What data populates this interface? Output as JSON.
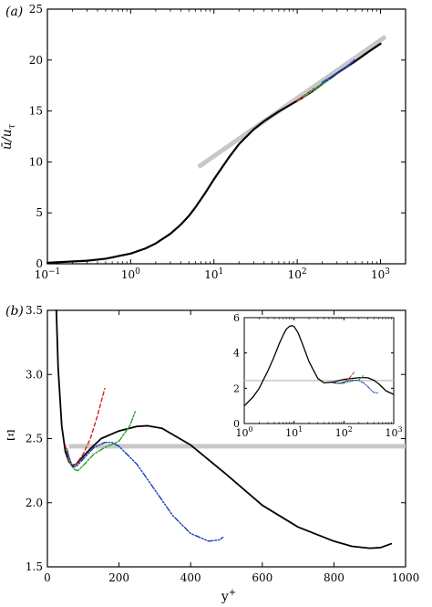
{
  "chart_data": [
    {
      "type": "line",
      "panel_label": "(a)",
      "xlabel": "",
      "ylabel": "ū/u",
      "ylabel_subscript": "τ",
      "xscale": "log",
      "xlim": [
        0.1,
        2000
      ],
      "ylim": [
        0,
        25
      ],
      "x_ticks": [
        0.1,
        1,
        10,
        100,
        1000
      ],
      "x_tick_labels": [
        {
          "base": "10",
          "exp": "−1"
        },
        {
          "base": "10",
          "exp": "0"
        },
        {
          "base": "10",
          "exp": "1"
        },
        {
          "base": "10",
          "exp": "2"
        },
        {
          "base": "10",
          "exp": "3"
        }
      ],
      "y_ticks": [
        0,
        5,
        10,
        15,
        20,
        25
      ],
      "y_tick_labels": [
        "0",
        "5",
        "10",
        "15",
        "20",
        "25"
      ],
      "grid": false,
      "series": [
        {
          "style": "reference",
          "color": "#c8c8c8",
          "dash": "",
          "x": [
            6.5,
            1150
          ],
          "y": [
            9.5,
            22.3
          ]
        },
        {
          "style": "solid",
          "color": "#000000",
          "dash": "",
          "x": [
            0.1,
            0.3,
            0.5,
            1,
            1.5,
            2,
            3,
            4,
            5,
            6,
            8,
            10,
            15,
            20,
            30,
            40,
            60,
            100,
            150,
            200,
            300,
            500,
            700,
            1000
          ],
          "y": [
            0.1,
            0.3,
            0.5,
            1,
            1.5,
            2,
            2.95,
            3.85,
            4.7,
            5.55,
            7.05,
            8.3,
            10.4,
            11.75,
            13.2,
            14.0,
            14.95,
            16.0,
            16.9,
            17.65,
            18.7,
            19.9,
            20.75,
            21.6
          ]
        },
        {
          "style": "dashed",
          "color": "#d62728",
          "dash": "4,3",
          "x": [
            100,
            160
          ],
          "y": [
            16.0,
            17.2
          ]
        },
        {
          "style": "dash-dot",
          "color": "#2ca02c",
          "dash": "6,2,2,2",
          "x": [
            120,
            250
          ],
          "y": [
            16.4,
            18.2
          ]
        },
        {
          "style": "dash-dot-dot",
          "color": "#1f3fbf",
          "dash": "6,2,1.5,2,1.5,2",
          "x": [
            200,
            300,
            400,
            490
          ],
          "y": [
            17.8,
            18.7,
            19.4,
            20.0
          ]
        }
      ]
    },
    {
      "type": "line",
      "panel_label": "(b)",
      "xlabel": "y",
      "xlabel_superscript": "+",
      "ylabel": "Ξ",
      "xlim": [
        0,
        1000
      ],
      "ylim": [
        1.5,
        3.5
      ],
      "x_ticks": [
        0,
        200,
        400,
        600,
        800,
        1000
      ],
      "x_tick_labels": [
        "0",
        "200",
        "400",
        "600",
        "800",
        "1000"
      ],
      "y_ticks": [
        1.5,
        2.0,
        2.5,
        3.0,
        3.5
      ],
      "y_tick_labels": [
        "1.5",
        "2.0",
        "2.5",
        "3.0",
        "3.5"
      ],
      "grid": false,
      "reference_value": 2.44,
      "series": [
        {
          "style": "reference",
          "color": "#c8c8c8",
          "dash": "",
          "x": [
            60,
            1000
          ],
          "y": [
            2.44,
            2.44
          ]
        },
        {
          "style": "solid",
          "color": "#000000",
          "dash": "",
          "x": [
            25,
            30,
            40,
            50,
            60,
            70,
            80,
            100,
            120,
            150,
            200,
            250,
            280,
            320,
            400,
            500,
            600,
            700,
            800,
            850,
            900,
            930,
            960
          ],
          "y": [
            3.5,
            3.05,
            2.6,
            2.4,
            2.32,
            2.29,
            2.3,
            2.36,
            2.42,
            2.5,
            2.56,
            2.595,
            2.6,
            2.58,
            2.45,
            2.22,
            1.98,
            1.81,
            1.7,
            1.66,
            1.645,
            1.65,
            1.68
          ]
        },
        {
          "style": "dashed",
          "color": "#d62728",
          "dash": "4,3",
          "x": [
            50,
            60,
            70,
            80,
            100,
            120,
            140,
            160
          ],
          "y": [
            2.45,
            2.32,
            2.28,
            2.3,
            2.38,
            2.5,
            2.68,
            2.89
          ]
        },
        {
          "style": "dash-dot",
          "color": "#2ca02c",
          "dash": "6,2,2,2",
          "x": [
            55,
            65,
            75,
            85,
            100,
            130,
            160,
            200,
            230,
            245
          ],
          "y": [
            2.42,
            2.3,
            2.26,
            2.25,
            2.29,
            2.38,
            2.43,
            2.48,
            2.6,
            2.71
          ]
        },
        {
          "style": "dash-dot-dot",
          "color": "#1f3fbf",
          "dash": "6,2,1.5,2,1.5,2",
          "x": [
            55,
            70,
            80,
            100,
            130,
            160,
            180,
            200,
            250,
            300,
            350,
            400,
            450,
            480,
            490
          ],
          "y": [
            2.4,
            2.28,
            2.28,
            2.34,
            2.43,
            2.47,
            2.47,
            2.44,
            2.3,
            2.1,
            1.9,
            1.76,
            1.7,
            1.71,
            1.73
          ]
        }
      ]
    },
    {
      "type": "line",
      "panel_label": "",
      "inset_of": "(b)",
      "xscale": "log",
      "xlim": [
        1,
        1000
      ],
      "ylim": [
        0,
        6
      ],
      "x_ticks": [
        1,
        10,
        100,
        1000
      ],
      "x_tick_labels": [
        {
          "base": "10",
          "exp": "0"
        },
        {
          "base": "10",
          "exp": "1"
        },
        {
          "base": "10",
          "exp": "2"
        },
        {
          "base": "10",
          "exp": "3"
        }
      ],
      "y_ticks": [
        0,
        2,
        4,
        6
      ],
      "y_tick_labels": [
        "0",
        "2",
        "4",
        "6"
      ],
      "grid": false,
      "series": [
        {
          "style": "reference",
          "color": "#c8c8c8",
          "dash": "",
          "x": [
            1,
            1000
          ],
          "y": [
            2.44,
            2.44
          ]
        },
        {
          "style": "solid",
          "color": "#000000",
          "dash": "",
          "x": [
            1,
            1.5,
            2,
            3,
            4,
            5,
            6,
            7,
            8,
            9,
            10,
            12,
            15,
            20,
            30,
            40,
            60,
            100,
            150,
            200,
            300,
            400,
            500,
            700,
            1000
          ],
          "y": [
            1.0,
            1.5,
            2.0,
            3.0,
            3.8,
            4.5,
            5.0,
            5.35,
            5.5,
            5.55,
            5.5,
            5.15,
            4.45,
            3.5,
            2.55,
            2.3,
            2.35,
            2.5,
            2.56,
            2.6,
            2.6,
            2.45,
            2.25,
            1.85,
            1.65
          ]
        },
        {
          "style": "dashed",
          "color": "#d62728",
          "dash": "3,2",
          "x": [
            60,
            80,
            100,
            120,
            140,
            160
          ],
          "y": [
            2.3,
            2.28,
            2.35,
            2.5,
            2.7,
            2.89
          ]
        },
        {
          "style": "dash-dot",
          "color": "#2ca02c",
          "dash": "4,2,1.5,2",
          "x": [
            60,
            85,
            100,
            130,
            160,
            200,
            245
          ],
          "y": [
            2.3,
            2.25,
            2.29,
            2.38,
            2.43,
            2.48,
            2.71
          ]
        },
        {
          "style": "dash-dot-dot",
          "color": "#1f3fbf",
          "dash": "4,1.5,1,1.5",
          "x": [
            60,
            80,
            100,
            130,
            160,
            200,
            250,
            300,
            350,
            400,
            490
          ],
          "y": [
            2.32,
            2.28,
            2.34,
            2.43,
            2.47,
            2.44,
            2.3,
            2.1,
            1.9,
            1.76,
            1.73
          ]
        }
      ]
    }
  ]
}
